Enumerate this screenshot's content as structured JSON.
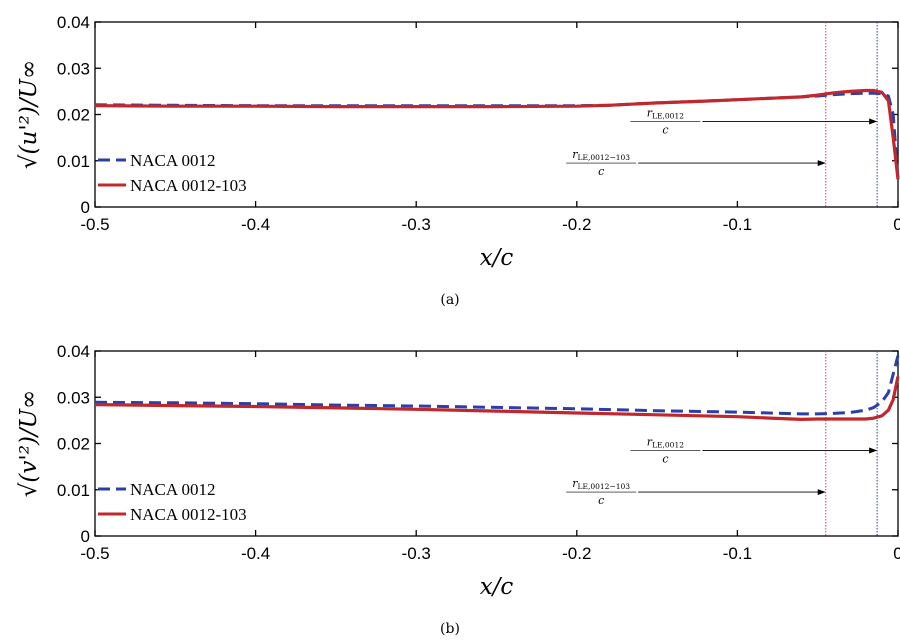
{
  "chart_data": [
    {
      "type": "line",
      "panel": "a",
      "caption": "(a)",
      "xlabel": "x/c",
      "ylabel": "√(u'²)/U∞",
      "xlim": [
        -0.5,
        0
      ],
      "ylim": [
        0,
        0.04
      ],
      "xticks": [
        -0.5,
        -0.4,
        -0.3,
        -0.2,
        -0.1,
        0
      ],
      "xtick_labels": [
        "-0.5",
        "-0.4",
        "-0.3",
        "-0.2",
        "-0.1",
        "0"
      ],
      "yticks": [
        0,
        0.01,
        0.02,
        0.03,
        0.04
      ],
      "ytick_labels": [
        "0",
        "0.01",
        "0.02",
        "0.03",
        "0.04"
      ],
      "grid": false,
      "legend": "bottom-left",
      "series": [
        {
          "name": "NACA 0012",
          "color": "#2a3fa8",
          "dash": true,
          "x": [
            -0.5,
            -0.45,
            -0.4,
            -0.35,
            -0.3,
            -0.25,
            -0.2,
            -0.18,
            -0.15,
            -0.12,
            -0.1,
            -0.08,
            -0.06,
            -0.05,
            -0.04,
            -0.03,
            -0.02,
            -0.015,
            -0.01,
            -0.006,
            -0.003,
            0
          ],
          "y": [
            0.0221,
            0.022,
            0.0219,
            0.0219,
            0.0219,
            0.0219,
            0.0219,
            0.022,
            0.0225,
            0.0229,
            0.0232,
            0.0235,
            0.0238,
            0.024,
            0.0243,
            0.0245,
            0.0246,
            0.0246,
            0.0245,
            0.024,
            0.02,
            0.006
          ]
        },
        {
          "name": "NACA 0012-103",
          "color": "#c0282d",
          "dash": false,
          "x": [
            -0.5,
            -0.45,
            -0.4,
            -0.35,
            -0.3,
            -0.25,
            -0.2,
            -0.18,
            -0.15,
            -0.12,
            -0.1,
            -0.08,
            -0.06,
            -0.05,
            -0.04,
            -0.03,
            -0.02,
            -0.015,
            -0.01,
            -0.006,
            -0.003,
            0
          ],
          "y": [
            0.0219,
            0.0218,
            0.0218,
            0.0217,
            0.0217,
            0.0217,
            0.0218,
            0.022,
            0.0225,
            0.0229,
            0.0232,
            0.0235,
            0.0238,
            0.0242,
            0.0247,
            0.025,
            0.0252,
            0.0252,
            0.0248,
            0.023,
            0.015,
            0.006
          ]
        }
      ],
      "vlines": [
        {
          "x": -0.045,
          "color": "#e0404a",
          "name": "NACA 0012-103"
        },
        {
          "x": -0.013,
          "color": "#2a3fa8",
          "name": "NACA 0012"
        }
      ],
      "annotations": [
        {
          "label": "r",
          "subscript": "LE,0012",
          "denominator": "c",
          "y": 0.0185,
          "x_from": -0.1,
          "x_to": -0.013
        },
        {
          "label": "r",
          "subscript": "LE,0012−103",
          "denominator": "c",
          "y": 0.0095,
          "x_from": -0.14,
          "x_to": -0.045
        }
      ]
    },
    {
      "type": "line",
      "panel": "b",
      "caption": "(b)",
      "xlabel": "x/c",
      "ylabel": "√(v'²)/U∞",
      "xlim": [
        -0.5,
        0
      ],
      "ylim": [
        0,
        0.04
      ],
      "xticks": [
        -0.5,
        -0.4,
        -0.3,
        -0.2,
        -0.1,
        0
      ],
      "xtick_labels": [
        "-0.5",
        "-0.4",
        "-0.3",
        "-0.2",
        "-0.1",
        "0"
      ],
      "yticks": [
        0,
        0.01,
        0.02,
        0.03,
        0.04
      ],
      "ytick_labels": [
        "0",
        "0.01",
        "0.02",
        "0.03",
        "0.04"
      ],
      "grid": false,
      "legend": "bottom-left",
      "series": [
        {
          "name": "NACA 0012",
          "color": "#2a3fa8",
          "dash": true,
          "x": [
            -0.5,
            -0.45,
            -0.4,
            -0.35,
            -0.3,
            -0.25,
            -0.2,
            -0.15,
            -0.1,
            -0.08,
            -0.06,
            -0.05,
            -0.04,
            -0.03,
            -0.02,
            -0.015,
            -0.01,
            -0.006,
            -0.003,
            0
          ],
          "y": [
            0.0289,
            0.0288,
            0.0286,
            0.0283,
            0.0281,
            0.0278,
            0.0275,
            0.0271,
            0.0268,
            0.0266,
            0.0264,
            0.0264,
            0.0265,
            0.0267,
            0.0272,
            0.0278,
            0.029,
            0.031,
            0.035,
            0.039
          ]
        },
        {
          "name": "NACA 0012-103",
          "color": "#c0282d",
          "dash": false,
          "x": [
            -0.5,
            -0.45,
            -0.4,
            -0.35,
            -0.3,
            -0.25,
            -0.2,
            -0.15,
            -0.1,
            -0.08,
            -0.06,
            -0.05,
            -0.04,
            -0.03,
            -0.02,
            -0.015,
            -0.01,
            -0.006,
            -0.003,
            0
          ],
          "y": [
            0.0284,
            0.0282,
            0.028,
            0.0277,
            0.0274,
            0.027,
            0.0266,
            0.0262,
            0.0258,
            0.0255,
            0.0252,
            0.0253,
            0.0253,
            0.0253,
            0.0253,
            0.0255,
            0.026,
            0.0272,
            0.0295,
            0.0345
          ]
        }
      ],
      "vlines": [
        {
          "x": -0.045,
          "color": "#e0404a",
          "name": "NACA 0012-103"
        },
        {
          "x": -0.013,
          "color": "#2a3fa8",
          "name": "NACA 0012"
        }
      ],
      "annotations": [
        {
          "label": "r",
          "subscript": "LE,0012",
          "denominator": "c",
          "y": 0.0185,
          "x_from": -0.1,
          "x_to": -0.013
        },
        {
          "label": "r",
          "subscript": "LE,0012−103",
          "denominator": "c",
          "y": 0.0095,
          "x_from": -0.14,
          "x_to": -0.045
        }
      ]
    }
  ]
}
